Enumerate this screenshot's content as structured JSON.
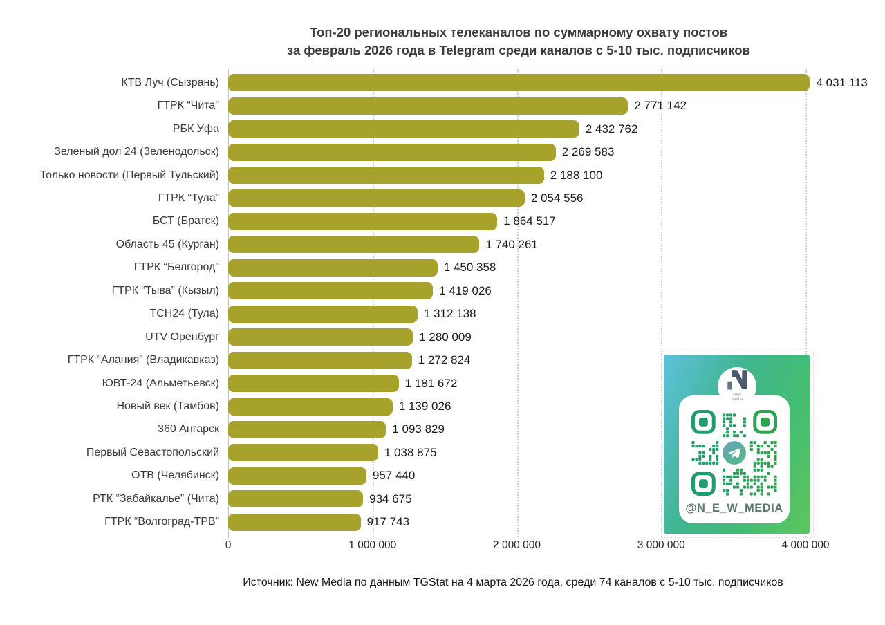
{
  "title": {
    "line1": "Топ-20 региональных телеканалов по суммарному охвату постов",
    "line2": "за февраль 2026 года в Telegram среди каналов с 5-10 тыс. подписчиков"
  },
  "source": "Источник: New Media по данным TGStat на 4 марта 2026 года, среди 74 каналов с 5-10 тыс. подписчиков",
  "chart_data": {
    "type": "bar",
    "orientation": "horizontal",
    "title": "Топ-20 региональных телеканалов по суммарному охвату постов за февраль 2026 года в Telegram среди каналов с 5-10 тыс. подписчиков",
    "categories": [
      "КТВ Луч (Сызрань)",
      "ГТРК “Чита\"",
      "РБК Уфа",
      "Зеленый дол 24 (Зеленодольск)",
      "Только новости (Первый Тульский)",
      "ГТРК “Тула”",
      "БСТ (Братск)",
      "Область 45 (Курган)",
      "ГТРК “Белгород\"",
      "ГТРК “Тыва” (Кызыл)",
      "ТСН24 (Тула)",
      "UTV Оренбург",
      "ГТРК “Алания” (Владикавказ)",
      "ЮВТ-24 (Альметьевск)",
      "Новый век (Тамбов)",
      "360 Ангарск",
      "Первый Севастопольский",
      "ОТВ (Челябинск)",
      "РТК “Забайкалье” (Чита)",
      "ГТРК “Волгоград-ТРВ”"
    ],
    "values": [
      4031113,
      2771142,
      2432762,
      2269583,
      2188100,
      2054556,
      1864517,
      1740261,
      1450358,
      1419026,
      1312138,
      1280009,
      1272824,
      1181672,
      1139026,
      1093829,
      1038875,
      957440,
      934675,
      917743
    ],
    "value_labels": [
      "4 031 113",
      "2 771 142",
      "2 432 762",
      "2 269 583",
      "2 188 100",
      "2 054 556",
      "1 864 517",
      "1 740 261",
      "1 450 358",
      "1 419 026",
      "1 312 138",
      "1 280 009",
      "1 272 824",
      "1 181 672",
      "1 139 026",
      "1 093 829",
      "1 038 875",
      "957 440",
      "934 675",
      "917 743"
    ],
    "xlabel": "",
    "ylabel": "",
    "xlim": [
      0,
      4000000
    ],
    "x_ticks": [
      0,
      1000000,
      2000000,
      3000000,
      4000000
    ],
    "x_tick_labels": [
      "0",
      "1 000 000",
      "2 000 000",
      "3 000 000",
      "4 000 000"
    ],
    "grid": "vertical-dotted",
    "legend": "none",
    "bar_color": "#a7a22b"
  },
  "qr_card": {
    "handle": "@N_E_W_MEDIA",
    "logo_name_line1": "New",
    "logo_name_line2": "Media",
    "gradient_colors": [
      "#5ec1dd",
      "#41b591",
      "#5fc55e"
    ],
    "qr_color_left": "#1f9b74",
    "qr_color_right": "#2ea44d",
    "logo_color": "#4a5b6c",
    "handle_color": "#55796a",
    "telegram_icon_colors": [
      "#6aa5bd",
      "#4fbb82"
    ]
  },
  "colors": {
    "bar": "#a7a22b",
    "grid": "#cdcdcd",
    "axis": "#bfbfbf",
    "title_text": "#3c3c3c",
    "label_text": "#3a3a3a"
  }
}
